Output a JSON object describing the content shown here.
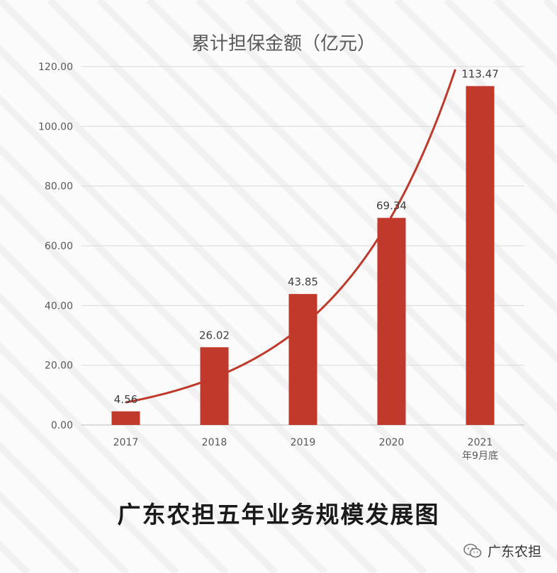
{
  "chart_data": {
    "type": "bar",
    "title": "累计担保金额（亿元）",
    "categories": [
      "2017",
      "2018",
      "2019",
      "2020",
      "2021\n年9月底"
    ],
    "values": [
      4.56,
      26.02,
      43.85,
      69.34,
      113.47
    ],
    "value_labels": [
      "4.56",
      "26.02",
      "43.85",
      "69.34",
      "113.47"
    ],
    "ylim": [
      0,
      120
    ],
    "yticks": [
      "0.00",
      "20.00",
      "40.00",
      "60.00",
      "80.00",
      "100.00",
      "120.00"
    ],
    "xlabel": "",
    "ylabel": "",
    "grid": true,
    "legend": "none",
    "bar_color": "#c0392b",
    "trend_color": "#c0392b",
    "trendline": "exponential"
  },
  "caption": "广东农担五年业务规模发展图",
  "brand": {
    "name": "广东农担",
    "icon": "wechat-icon"
  }
}
